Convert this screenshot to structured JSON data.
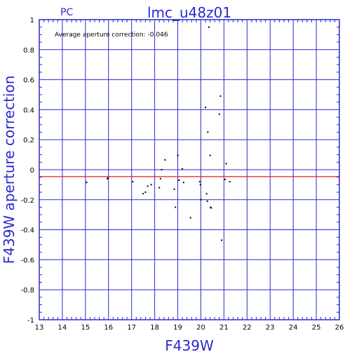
{
  "chart_data": {
    "type": "scatter",
    "title": "lmc_u48z01",
    "corner_label": "PC",
    "xlabel": "F439W",
    "ylabel": "F439W aperture correction",
    "annotation": "Average aperture correction: -0.046",
    "xlim": [
      13,
      26
    ],
    "ylim": [
      -1,
      1
    ],
    "x_ticks": [
      "13",
      "14",
      "15",
      "16",
      "17",
      "18",
      "19",
      "20",
      "21",
      "22",
      "23",
      "24",
      "25",
      "26"
    ],
    "y_ticks": [
      "-1",
      "-0.8",
      "-0.6",
      "-0.4",
      "-0.2",
      "0",
      "0.2",
      "0.4",
      "0.6",
      "0.8",
      "1"
    ],
    "grid": true,
    "reference_line": {
      "y": -0.046,
      "color": "#dd2020"
    },
    "colors": {
      "axis": "#2a2ad0",
      "points": "#000000"
    },
    "points": [
      {
        "x": 15.05,
        "y": -0.085
      },
      {
        "x": 15.95,
        "y": -0.06
      },
      {
        "x": 15.98,
        "y": -0.055
      },
      {
        "x": 17.05,
        "y": -0.08
      },
      {
        "x": 17.5,
        "y": -0.16
      },
      {
        "x": 17.6,
        "y": -0.15
      },
      {
        "x": 17.7,
        "y": -0.11
      },
      {
        "x": 17.85,
        "y": -0.1
      },
      {
        "x": 18.2,
        "y": -0.12
      },
      {
        "x": 18.25,
        "y": -0.06
      },
      {
        "x": 18.3,
        "y": 0.0
      },
      {
        "x": 18.45,
        "y": 0.065
      },
      {
        "x": 18.85,
        "y": -0.13
      },
      {
        "x": 18.9,
        "y": -0.25
      },
      {
        "x": 19.0,
        "y": 0.095
      },
      {
        "x": 19.05,
        "y": -0.07
      },
      {
        "x": 19.2,
        "y": 0.005
      },
      {
        "x": 19.25,
        "y": -0.085
      },
      {
        "x": 19.55,
        "y": -0.32
      },
      {
        "x": 19.95,
        "y": -0.08
      },
      {
        "x": 19.98,
        "y": -0.1
      },
      {
        "x": 20.0,
        "y": -0.2
      },
      {
        "x": 20.2,
        "y": 0.415
      },
      {
        "x": 20.25,
        "y": -0.16
      },
      {
        "x": 20.28,
        "y": -0.21
      },
      {
        "x": 20.3,
        "y": 0.25
      },
      {
        "x": 20.35,
        "y": 0.95
      },
      {
        "x": 20.4,
        "y": 0.095
      },
      {
        "x": 20.42,
        "y": -0.25
      },
      {
        "x": 20.45,
        "y": -0.255
      },
      {
        "x": 20.8,
        "y": 0.37
      },
      {
        "x": 20.85,
        "y": 0.49
      },
      {
        "x": 20.9,
        "y": -0.47
      },
      {
        "x": 21.05,
        "y": -0.065
      },
      {
        "x": 21.1,
        "y": 0.04
      },
      {
        "x": 21.25,
        "y": -0.08
      }
    ]
  }
}
